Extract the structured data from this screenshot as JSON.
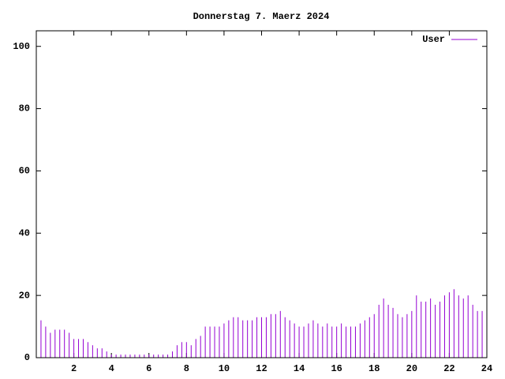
{
  "chart_data": {
    "type": "impulse",
    "title": "Donnerstag 7. Maerz 2024",
    "x": [
      0,
      0.25,
      0.5,
      0.75,
      1,
      1.25,
      1.5,
      1.75,
      2,
      2.25,
      2.5,
      2.75,
      3,
      3.25,
      3.5,
      3.75,
      4,
      4.25,
      4.5,
      4.75,
      5,
      5.25,
      5.5,
      5.75,
      6,
      6.25,
      6.5,
      6.75,
      7,
      7.25,
      7.5,
      7.75,
      8,
      8.25,
      8.5,
      8.75,
      9,
      9.25,
      9.5,
      9.75,
      10,
      10.25,
      10.5,
      10.75,
      11,
      11.25,
      11.5,
      11.75,
      12,
      12.25,
      12.5,
      12.75,
      13,
      13.25,
      13.5,
      13.75,
      14,
      14.25,
      14.5,
      14.75,
      15,
      15.25,
      15.5,
      15.75,
      16,
      16.25,
      16.5,
      16.75,
      17,
      17.25,
      17.5,
      17.75,
      18,
      18.25,
      18.5,
      18.75,
      19,
      19.25,
      19.5,
      19.75,
      20,
      20.25,
      20.5,
      20.75,
      21,
      21.25,
      21.5,
      21.75,
      22,
      22.25,
      22.5,
      22.75,
      23,
      23.25,
      23.5,
      23.75,
      24
    ],
    "series": [
      {
        "name": "User",
        "color": "#9400d3",
        "values": [
          13,
          12,
          10,
          8,
          9,
          9,
          9,
          8,
          6,
          6,
          6,
          5,
          4,
          3,
          3,
          2,
          1,
          1,
          1,
          1,
          1,
          1,
          1,
          1,
          1,
          1,
          1,
          1,
          1,
          2,
          4,
          5,
          5,
          4,
          6,
          7,
          10,
          10,
          10,
          10,
          11,
          12,
          13,
          13,
          12,
          12,
          12,
          13,
          13,
          13,
          14,
          14,
          15,
          13,
          12,
          11,
          10,
          10,
          11,
          12,
          11,
          10,
          11,
          10,
          10,
          11,
          10,
          10,
          10,
          11,
          12,
          13,
          14,
          17,
          19,
          17,
          16,
          14,
          13,
          14,
          15,
          20,
          18,
          18,
          19,
          17,
          18,
          20,
          21,
          22,
          20,
          19,
          20,
          17,
          15,
          15,
          15
        ]
      }
    ],
    "xlim": [
      0,
      24
    ],
    "xticks": [
      2,
      4,
      6,
      8,
      10,
      12,
      14,
      16,
      18,
      20,
      22,
      24
    ],
    "ylim": [
      0,
      105
    ],
    "yticks": [
      0,
      20,
      40,
      60,
      80,
      100
    ],
    "legend": "top-right"
  }
}
